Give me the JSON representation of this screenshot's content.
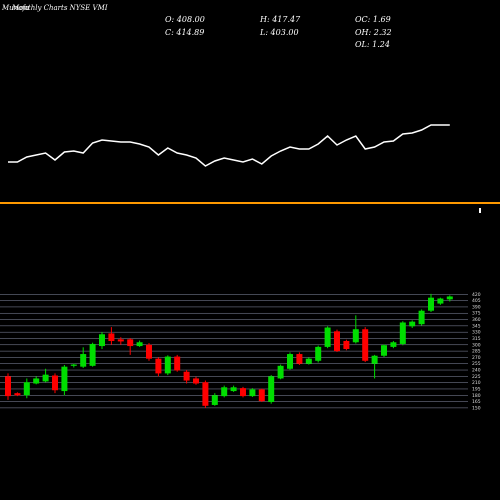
{
  "chart_data": [
    {
      "type": "candlestick",
      "title": "Monthly Charts NYSE VMI",
      "watermark": "Munafa",
      "annotations": [
        "O: 408.00",
        "H: 417.47",
        "OC: 1.69",
        "C: 414.89",
        "L: 403.00",
        "OH: 2.32",
        "OL: 1.24"
      ],
      "open": [
        225,
        185,
        180,
        208,
        213,
        227,
        190,
        250,
        248,
        250,
        297,
        327,
        313,
        313,
        297,
        300,
        267,
        232,
        272,
        236,
        220,
        211,
        157,
        178,
        190,
        197,
        178,
        194,
        164,
        220,
        243,
        278,
        255,
        262,
        295,
        332,
        309,
        306,
        337,
        255,
        274,
        295,
        302,
        344,
        349,
        381,
        398,
        408
      ],
      "high": [
        232,
        187,
        220,
        225,
        243,
        232,
        252,
        255,
        294,
        305,
        330,
        342,
        318,
        316,
        310,
        304,
        270,
        275,
        276,
        240,
        224,
        215,
        185,
        203,
        203,
        200,
        197,
        196,
        228,
        253,
        282,
        282,
        270,
        298,
        344,
        336,
        312,
        370,
        342,
        276,
        301,
        309,
        356,
        358,
        384,
        421,
        412,
        417.47
      ],
      "low": [
        169,
        178,
        173,
        206,
        211,
        185,
        180,
        246,
        245,
        248,
        290,
        300,
        300,
        276,
        295,
        262,
        225,
        228,
        236,
        208,
        205,
        150,
        155,
        175,
        188,
        175,
        176,
        164,
        160,
        218,
        240,
        252,
        253,
        258,
        292,
        283,
        287,
        303,
        259,
        220,
        271,
        292,
        299,
        340,
        346,
        378,
        395,
        403
      ],
      "close": [
        178,
        180,
        211,
        220,
        229,
        192,
        248,
        253,
        278,
        302,
        325,
        309,
        308,
        297,
        306,
        267,
        232,
        272,
        239,
        215,
        208,
        155,
        180,
        199,
        199,
        178,
        194,
        166,
        225,
        250,
        278,
        255,
        267,
        295,
        341,
        285,
        290,
        337,
        262,
        274,
        299,
        306,
        353,
        355,
        381,
        412,
        410,
        414.89
      ],
      "up_color": "#00dd00",
      "down_color": "#ff0000",
      "ylim": [
        145,
        435
      ],
      "yticks": [
        150,
        165,
        180,
        195,
        210,
        225,
        240,
        255,
        270,
        285,
        300,
        315,
        330,
        345,
        360,
        375,
        390,
        405,
        420
      ],
      "grid": true
    },
    {
      "type": "line",
      "values": [
        22.5,
        22.5,
        28.8,
        31.3,
        33.8,
        25,
        35,
        36.3,
        33.8,
        46.3,
        50,
        48.8,
        47.5,
        47.5,
        45,
        41.3,
        31.3,
        40,
        33.8,
        31.3,
        27.5,
        17.5,
        23.8,
        27.5,
        25,
        22.5,
        26.3,
        20,
        30,
        36.3,
        41.3,
        38.8,
        38.8,
        45,
        55,
        43.8,
        50,
        55,
        38.8,
        41.3,
        47.5,
        48.8,
        57.5,
        58.8,
        62.5,
        68.8,
        68.8,
        68.8
      ],
      "color": "#ffffff",
      "ylim": [
        0,
        100
      ]
    }
  ]
}
